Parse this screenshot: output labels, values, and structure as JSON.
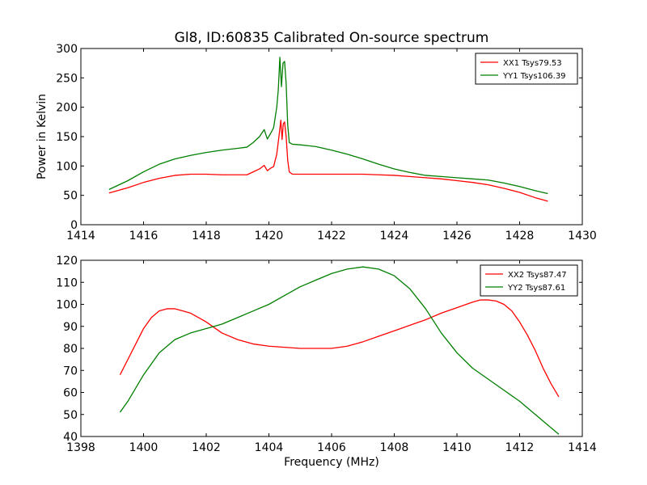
{
  "title": "Gl8, ID:60835 Calibrated On-source spectrum",
  "colors": {
    "xx": "#ff0000",
    "yy": "#007f00"
  },
  "chart_data": [
    {
      "type": "line",
      "title": "Gl8, ID:60835 Calibrated On-source spectrum",
      "xlabel": "",
      "ylabel": "Power in Kelvin",
      "xlim": [
        1414,
        1430
      ],
      "ylim": [
        0,
        300
      ],
      "xticks": [
        1414,
        1416,
        1418,
        1420,
        1422,
        1424,
        1426,
        1428,
        1430
      ],
      "yticks": [
        0,
        50,
        100,
        150,
        200,
        250,
        300
      ],
      "grid": false,
      "legend_position": "top-right",
      "series": [
        {
          "name": "XX1 Tsys79.53",
          "color": "#ff0000",
          "x": [
            1414.9,
            1415.5,
            1416.0,
            1416.5,
            1417.0,
            1417.5,
            1418.0,
            1418.5,
            1419.0,
            1419.3,
            1419.5,
            1419.7,
            1419.85,
            1419.95,
            1420.05,
            1420.15,
            1420.25,
            1420.32,
            1420.38,
            1420.42,
            1420.46,
            1420.5,
            1420.55,
            1420.6,
            1420.65,
            1420.75,
            1421.0,
            1421.5,
            1422.0,
            1422.5,
            1423.0,
            1423.5,
            1424.0,
            1424.5,
            1425.0,
            1425.5,
            1426.0,
            1426.5,
            1427.0,
            1427.5,
            1428.0,
            1428.5,
            1428.9
          ],
          "y": [
            54,
            63,
            72,
            79,
            84,
            86,
            86,
            85,
            85,
            85,
            90,
            95,
            101,
            92,
            96,
            99,
            120,
            150,
            178,
            145,
            172,
            175,
            150,
            110,
            90,
            86,
            86,
            86,
            86,
            86,
            86,
            85,
            84,
            82,
            80,
            78,
            75,
            72,
            68,
            62,
            55,
            46,
            40
          ]
        },
        {
          "name": "YY1 Tsys106.39",
          "color": "#007f00",
          "x": [
            1414.9,
            1415.5,
            1416.0,
            1416.5,
            1417.0,
            1417.5,
            1418.0,
            1418.5,
            1419.0,
            1419.3,
            1419.5,
            1419.7,
            1419.85,
            1419.95,
            1420.05,
            1420.15,
            1420.25,
            1420.3,
            1420.35,
            1420.4,
            1420.45,
            1420.5,
            1420.55,
            1420.6,
            1420.65,
            1420.75,
            1421.0,
            1421.5,
            1422.0,
            1422.5,
            1423.0,
            1423.5,
            1424.0,
            1424.5,
            1425.0,
            1425.5,
            1426.0,
            1426.5,
            1427.0,
            1427.5,
            1428.0,
            1428.5,
            1428.9
          ],
          "y": [
            60,
            75,
            90,
            103,
            112,
            118,
            123,
            127,
            130,
            132,
            140,
            150,
            162,
            146,
            155,
            165,
            200,
            230,
            285,
            235,
            275,
            278,
            240,
            170,
            140,
            137,
            136,
            133,
            127,
            120,
            112,
            103,
            95,
            89,
            84,
            82,
            80,
            78,
            76,
            71,
            65,
            58,
            53
          ]
        }
      ]
    },
    {
      "type": "line",
      "title": "",
      "xlabel": "Frequency (MHz)",
      "ylabel": "",
      "xlim": [
        1398,
        1414
      ],
      "ylim": [
        40,
        120
      ],
      "xticks": [
        1398,
        1400,
        1402,
        1404,
        1406,
        1408,
        1410,
        1412,
        1414
      ],
      "yticks": [
        40,
        50,
        60,
        70,
        80,
        90,
        100,
        110,
        120
      ],
      "grid": false,
      "legend_position": "top-right",
      "series": [
        {
          "name": "XX2 Tsys87.47",
          "color": "#ff0000",
          "x": [
            1399.25,
            1399.5,
            1399.75,
            1400.0,
            1400.25,
            1400.5,
            1400.75,
            1401.0,
            1401.25,
            1401.5,
            1401.75,
            1402.0,
            1402.5,
            1403.0,
            1403.5,
            1404.0,
            1404.5,
            1405.0,
            1405.5,
            1406.0,
            1406.5,
            1407.0,
            1407.5,
            1408.0,
            1408.5,
            1409.0,
            1409.5,
            1410.0,
            1410.5,
            1410.75,
            1411.0,
            1411.25,
            1411.5,
            1411.75,
            1412.0,
            1412.25,
            1412.5,
            1412.75,
            1413.0,
            1413.25
          ],
          "y": [
            68,
            75,
            82,
            89,
            94,
            97,
            98,
            98,
            97,
            96,
            94,
            92,
            87,
            84,
            82,
            81,
            80.5,
            80,
            80,
            80,
            81,
            83,
            85.5,
            88,
            90.5,
            93,
            96,
            98.5,
            101,
            102,
            102,
            101.5,
            100,
            97,
            92,
            86,
            79,
            71,
            64,
            58
          ]
        },
        {
          "name": "YY2 Tsys87.61",
          "color": "#007f00",
          "x": [
            1399.25,
            1399.5,
            1399.75,
            1400.0,
            1400.25,
            1400.5,
            1400.75,
            1401.0,
            1401.5,
            1402.0,
            1402.5,
            1403.0,
            1403.5,
            1404.0,
            1404.5,
            1405.0,
            1405.5,
            1406.0,
            1406.5,
            1407.0,
            1407.5,
            1408.0,
            1408.5,
            1409.0,
            1409.5,
            1410.0,
            1410.5,
            1411.0,
            1411.5,
            1412.0,
            1412.5,
            1413.0,
            1413.25
          ],
          "y": [
            51,
            56,
            62,
            68,
            73,
            78,
            81,
            84,
            87,
            89,
            91,
            94,
            97,
            100,
            104,
            108,
            111,
            114,
            116,
            117,
            116,
            113,
            107,
            98,
            87,
            78,
            71,
            66,
            61,
            56,
            50,
            44,
            41
          ]
        }
      ]
    }
  ]
}
